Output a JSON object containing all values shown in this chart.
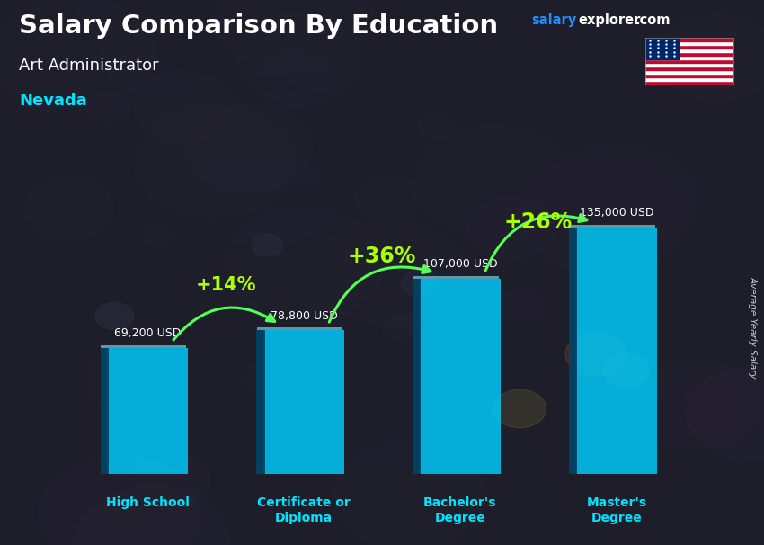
{
  "title": "Salary Comparison By Education",
  "subtitle1": "Art Administrator",
  "subtitle2": "Nevada",
  "ylabel": "Average Yearly Salary",
  "categories": [
    "High School",
    "Certificate or\nDiploma",
    "Bachelor's\nDegree",
    "Master's\nDegree"
  ],
  "values": [
    69200,
    78800,
    107000,
    135000
  ],
  "value_labels": [
    "69,200 USD",
    "78,800 USD",
    "107,000 USD",
    "135,000 USD"
  ],
  "pct_labels": [
    "+14%",
    "+36%",
    "+26%"
  ],
  "bar_color": "#00cfff",
  "bar_edge_color": "#007aaa",
  "title_color": "#ffffff",
  "subtitle1_color": "#ffffff",
  "subtitle2_color": "#00e5ff",
  "value_label_color": "#ffffff",
  "pct_color": "#aaff00",
  "ylabel_color": "#ffffff",
  "arrow_color": "#55ff55",
  "cat_label_color": "#00e5ff",
  "figsize": [
    8.5,
    6.06
  ],
  "dpi": 100,
  "max_val": 155000,
  "bar_width": 0.52
}
